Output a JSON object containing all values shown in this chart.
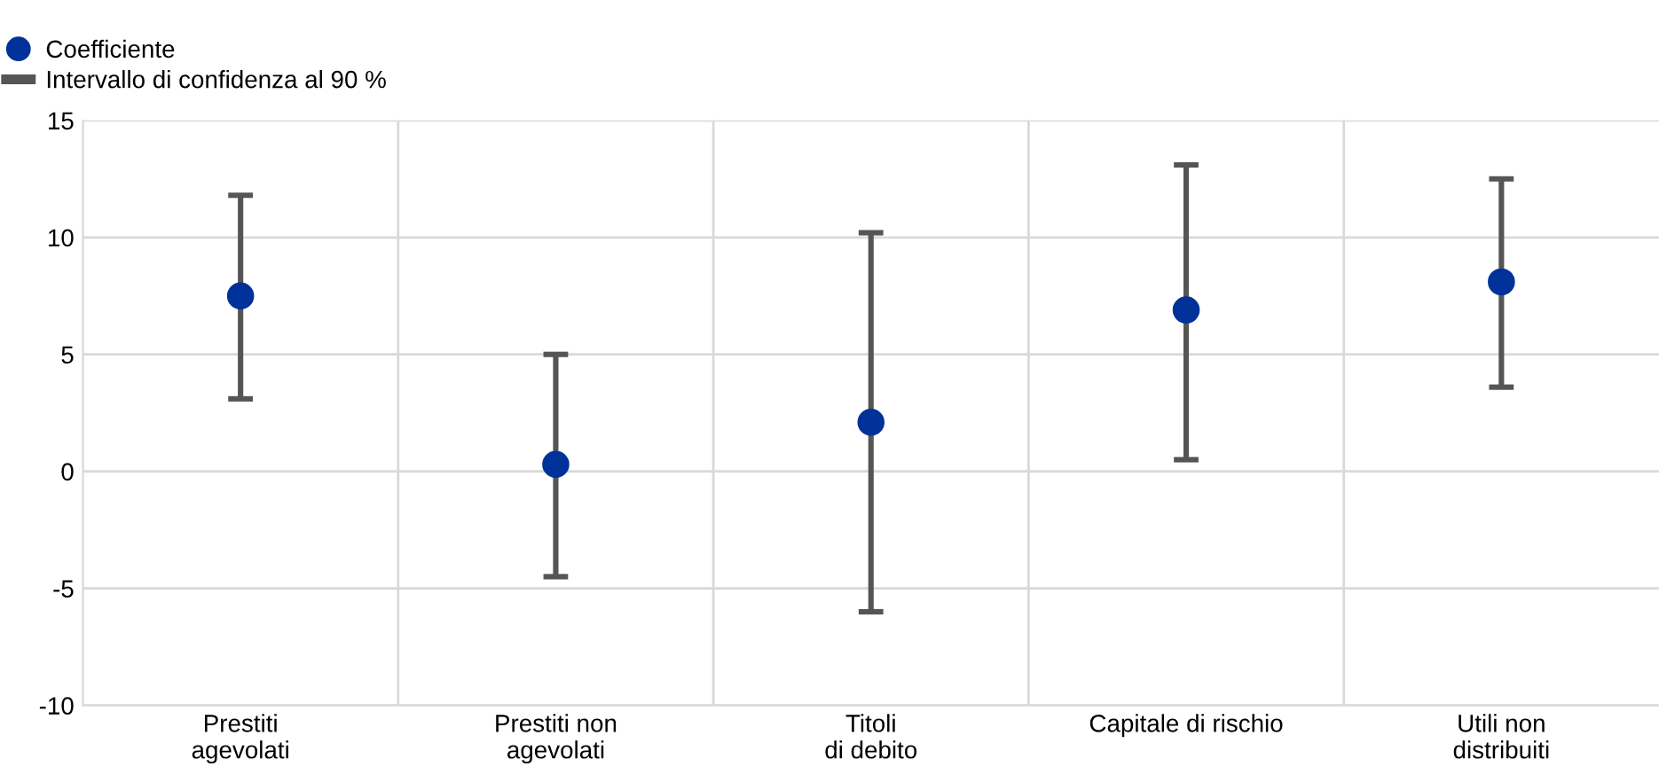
{
  "chart_data": {
    "type": "scatter",
    "categories": [
      "Prestiti\nagevolati",
      "Prestiti non\nagevolati",
      "Titoli\ndi debito",
      "Capitale di rischio",
      "Utili non\ndistribuiti"
    ],
    "series": [
      {
        "name": "Coefficiente",
        "color": "#003299",
        "values": [
          7.5,
          0.3,
          2.1,
          6.9,
          8.1
        ],
        "errors": [
          [
            3.1,
            11.8
          ],
          [
            -4.5,
            5.0
          ],
          [
            -6.0,
            10.2
          ],
          [
            0.5,
            13.1
          ],
          [
            3.6,
            12.5
          ]
        ]
      }
    ],
    "annotations": [
      "Intervallo di confidenza al 90 %"
    ],
    "ylim": [
      -10,
      15
    ],
    "yticks": [
      -10,
      -5,
      0,
      5,
      10,
      15
    ],
    "grid": true,
    "legend": "top left",
    "marker": "circle"
  }
}
